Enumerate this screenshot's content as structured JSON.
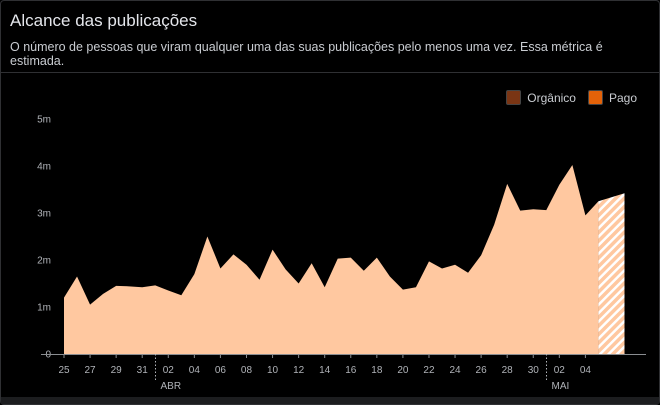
{
  "header": {
    "title": "Alcance das publicações",
    "subtitle": "O número de pessoas que viram qualquer uma das suas publicações pelo menos uma vez. Essa métrica é estimada."
  },
  "legend": [
    {
      "label": "Orgânico",
      "color": "#7a3514"
    },
    {
      "label": "Pago",
      "color": "#e36209"
    }
  ],
  "chart_data": {
    "type": "area",
    "fill_color": "#ffc8a0",
    "y_ticks": [
      {
        "value": 0,
        "label": "0"
      },
      {
        "value": 1,
        "label": "1m"
      },
      {
        "value": 2,
        "label": "2m"
      },
      {
        "value": 3,
        "label": "3m"
      },
      {
        "value": 4,
        "label": "4m"
      },
      {
        "value": 5,
        "label": "5m"
      }
    ],
    "ylim": [
      0,
      5
    ],
    "x_ticks": [
      {
        "day": 0,
        "label": "25"
      },
      {
        "day": 2,
        "label": "27"
      },
      {
        "day": 4,
        "label": "29"
      },
      {
        "day": 6,
        "label": "31"
      },
      {
        "day": 8,
        "label": "02"
      },
      {
        "day": 10,
        "label": "04"
      },
      {
        "day": 12,
        "label": "06"
      },
      {
        "day": 14,
        "label": "08"
      },
      {
        "day": 16,
        "label": "10"
      },
      {
        "day": 18,
        "label": "12"
      },
      {
        "day": 20,
        "label": "14"
      },
      {
        "day": 22,
        "label": "16"
      },
      {
        "day": 24,
        "label": "18"
      },
      {
        "day": 26,
        "label": "20"
      },
      {
        "day": 28,
        "label": "22"
      },
      {
        "day": 30,
        "label": "24"
      },
      {
        "day": 32,
        "label": "26"
      },
      {
        "day": 34,
        "label": "28"
      },
      {
        "day": 36,
        "label": "30"
      },
      {
        "day": 38,
        "label": "02"
      },
      {
        "day": 40,
        "label": "04"
      }
    ],
    "month_markers": [
      {
        "day": 7,
        "label": "ABR"
      },
      {
        "day": 37,
        "label": "MAI"
      }
    ],
    "xlim": [
      0,
      43
    ],
    "values": [
      1.2,
      1.65,
      1.05,
      1.28,
      1.45,
      1.44,
      1.42,
      1.46,
      1.35,
      1.25,
      1.7,
      2.5,
      1.82,
      2.12,
      1.9,
      1.58,
      2.22,
      1.8,
      1.5,
      1.93,
      1.42,
      2.03,
      2.05,
      1.77,
      2.05,
      1.65,
      1.37,
      1.42,
      1.97,
      1.82,
      1.9,
      1.73,
      2.1,
      2.75,
      3.62,
      3.05,
      3.08,
      3.06,
      3.6,
      4.02,
      2.95,
      3.25
    ],
    "estimated_last_value": 3.42
  }
}
